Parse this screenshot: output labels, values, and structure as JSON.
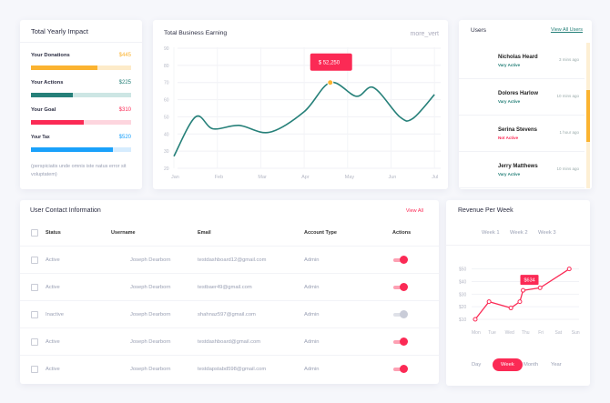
{
  "impact": {
    "title": "Total Yearly Impact",
    "items": [
      {
        "label": "Your Donations",
        "value": "$445",
        "color": "#fbb330",
        "track": "#fdebc9",
        "pct": 66
      },
      {
        "label": "Your Actions",
        "value": "$225",
        "color": "#268079",
        "track": "#cde6e4",
        "pct": 42
      },
      {
        "label": "Your Goal",
        "value": "$310",
        "color": "#fb2a55",
        "track": "#fdd5de",
        "pct": 53
      },
      {
        "label": "Your Tax",
        "value": "$520",
        "color": "#1aa1fb",
        "track": "#d6ecfe",
        "pct": 82
      }
    ],
    "note": "(perspiciatis unde omnis iste natus error sit voluptatem)"
  },
  "earning": {
    "title": "Total Business Earning",
    "menu": "more_vert",
    "tooltip": "$ 52,250"
  },
  "users": {
    "title": "Users",
    "view_all": "View All Users",
    "list": [
      {
        "name": "Nicholas Heard",
        "status": "Vary Active",
        "time": "3 mins ago",
        "color": "#268079"
      },
      {
        "name": "Dolores Harlow",
        "status": "Vary Active",
        "time": "10 mins ago",
        "color": "#268079"
      },
      {
        "name": "Serina Stevens",
        "status": "Not Active",
        "time": "1 hour ago",
        "color": "#fb2a55"
      },
      {
        "name": "Jerry Matthews",
        "status": "Vary Active",
        "time": "10 mins ago",
        "color": "#268079"
      }
    ]
  },
  "contacts": {
    "title": "User Contact Information",
    "view_all": "View All",
    "headers": [
      "Status",
      "Username",
      "Email",
      "Account Type",
      "Actions"
    ],
    "rows": [
      {
        "status": "Active",
        "username": "Joseph Dearborn",
        "email": "testdashboard12@gmail.com",
        "type": "Admin",
        "on": true
      },
      {
        "status": "Active",
        "username": "Joseph Dearborn",
        "email": "testbaer49@gmail.com",
        "type": "Admin",
        "on": true
      },
      {
        "status": "Inactive",
        "username": "Joseph Dearborn",
        "email": "shahnaz597@gmail.com",
        "type": "Admin",
        "on": false
      },
      {
        "status": "Active",
        "username": "Joseph Dearborn",
        "email": "testdashboard@gmail.com",
        "type": "Admin",
        "on": true
      },
      {
        "status": "Active",
        "username": "Joseph Dearborn",
        "email": "testdapstabd598@gmail.com",
        "type": "Admin",
        "on": true
      }
    ]
  },
  "revenue": {
    "title": "Revenue Per Week",
    "weeks": [
      "Week 1",
      "Week 2",
      "Week 3"
    ],
    "tooltip": "$634",
    "periods": [
      "Day",
      "Week",
      "Month",
      "Year"
    ],
    "active_period": "Week"
  },
  "chart_data": [
    {
      "type": "line",
      "title": "Total Business Earning",
      "categories": [
        "Jan",
        "Feb",
        "Mar",
        "Apr",
        "May",
        "Jun",
        "Jul"
      ],
      "yticks": [
        20,
        30,
        40,
        50,
        60,
        70,
        80,
        90
      ],
      "ylim": [
        20,
        90
      ],
      "color": "#268079",
      "highlight_color": "#fbb330",
      "points": [
        [
          0,
          27
        ],
        [
          0.5,
          50
        ],
        [
          0.9,
          43
        ],
        [
          1.5,
          45
        ],
        [
          2.2,
          41
        ],
        [
          3,
          53
        ],
        [
          3.6,
          70
        ],
        [
          4.2,
          62
        ],
        [
          4.6,
          67
        ],
        [
          5.2,
          50
        ],
        [
          5.5,
          49
        ],
        [
          6,
          63
        ]
      ]
    },
    {
      "type": "line",
      "title": "Revenue Per Week",
      "categories": [
        "Mon",
        "Tue",
        "Wed",
        "Thu",
        "Fri",
        "Sat",
        "Sun"
      ],
      "yticks": [
        "$10",
        "$20",
        "$30",
        "$40",
        "$50"
      ],
      "ylim": [
        10,
        50
      ],
      "color": "#fb2a55",
      "points": [
        [
          0,
          10
        ],
        [
          0.85,
          24
        ],
        [
          2.2,
          19
        ],
        [
          2.75,
          24
        ],
        [
          2.95,
          33
        ],
        [
          4,
          35
        ],
        [
          5.8,
          50
        ]
      ]
    }
  ]
}
